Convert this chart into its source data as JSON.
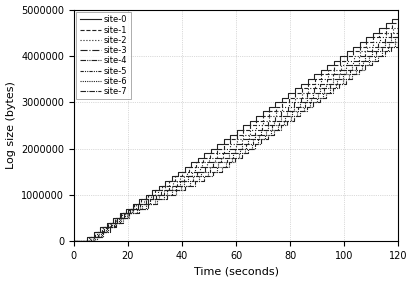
{
  "xlabel": "Time (seconds)",
  "ylabel": "Log size (bytes)",
  "xlim": [
    0,
    120
  ],
  "ylim": [
    0,
    5000000
  ],
  "xticks": [
    0,
    20,
    40,
    60,
    80,
    100,
    120
  ],
  "yticks": [
    0,
    1000000,
    2000000,
    3000000,
    4000000,
    5000000
  ],
  "sites": [
    "site-0",
    "site-1",
    "site-2",
    "site-3",
    "site-4",
    "site-5",
    "site-6",
    "site-7"
  ],
  "color": "#222222",
  "grid_color": "#999999",
  "bg_color": "#ffffff",
  "step_size": 100000,
  "base_rate_per_sec": 41667,
  "t_max": 120,
  "num_sites": 8
}
